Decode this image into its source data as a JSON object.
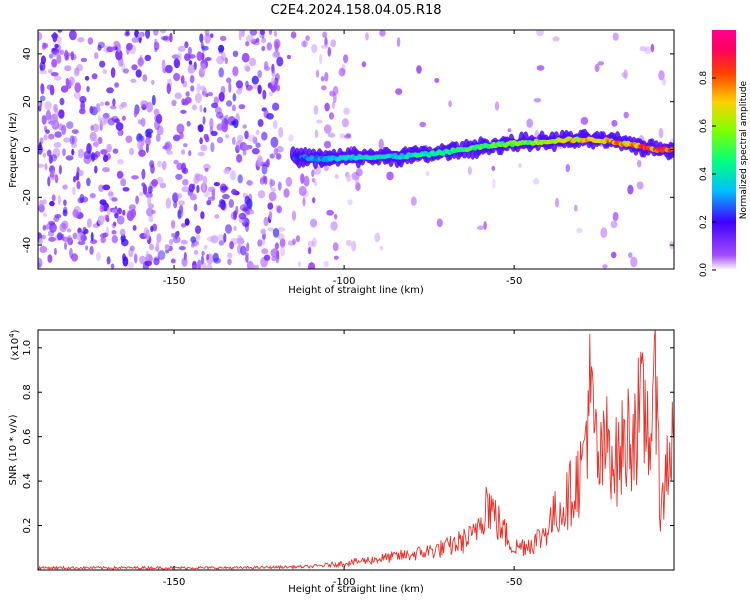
{
  "title": "C2E4.2024.158.04.05.R18",
  "colors": {
    "snr_line": "#e8332b",
    "frame": "#000000"
  },
  "chart_data": [
    {
      "type": "heatmap",
      "name": "spectrogram",
      "xlabel": "Height of straight line (km)",
      "ylabel": "Frequency (Hz)",
      "xlim": [
        -190,
        -3
      ],
      "ylim": [
        -50,
        50
      ],
      "xticks": [
        -150,
        -100,
        -50
      ],
      "yticks": [
        -40,
        -20,
        0,
        20,
        40
      ],
      "colormap": "rainbow (violet -> blue -> cyan -> green -> yellow -> red -> magenta)",
      "colorbar": {
        "label": "Normalized spectral amplitude",
        "range": [
          0.0,
          1.0
        ],
        "ticks": [
          0.0,
          0.2,
          0.4,
          0.6,
          0.8
        ]
      },
      "ridge": {
        "description": "dominant frequency track",
        "x": [
          -115,
          -105,
          -95,
          -85,
          -75,
          -65,
          -55,
          -45,
          -35,
          -25,
          -15,
          -8,
          -3
        ],
        "frequency": [
          -3,
          -4,
          -3,
          -3,
          -2,
          0,
          2,
          3,
          4,
          4,
          2,
          0,
          0
        ],
        "amplitude": [
          0.25,
          0.35,
          0.4,
          0.4,
          0.45,
          0.5,
          0.55,
          0.6,
          0.7,
          0.75,
          0.85,
          0.9,
          0.95
        ]
      }
    },
    {
      "type": "line",
      "name": "snr",
      "xlabel": "Height of straight line (km)",
      "ylabel": "SNR (10 * v/v)",
      "y_multiplier_label": "(x10^4)",
      "xlim": [
        -190,
        -3
      ],
      "ylim": [
        0,
        1.08
      ],
      "xticks": [
        -150,
        -100,
        -50
      ],
      "yticks": [
        0.2,
        0.4,
        0.6,
        0.8,
        1.0
      ],
      "series": [
        {
          "x": [
            -190,
            -170,
            -150,
            -130,
            -110,
            -100,
            -90,
            -80,
            -70,
            -62,
            -58,
            -55,
            -50,
            -45,
            -42,
            -38,
            -35,
            -30,
            -28,
            -25,
            -22,
            -20,
            -18,
            -15,
            -12,
            -9,
            -8,
            -7,
            -5,
            -3
          ],
          "y": [
            0.01,
            0.01,
            0.01,
            0.01,
            0.015,
            0.03,
            0.05,
            0.07,
            0.1,
            0.15,
            0.32,
            0.22,
            0.1,
            0.12,
            0.15,
            0.25,
            0.3,
            0.45,
            0.8,
            0.45,
            0.6,
            0.48,
            0.55,
            0.65,
            0.7,
            0.62,
            1.05,
            0.2,
            0.5,
            0.6
          ]
        }
      ]
    }
  ]
}
